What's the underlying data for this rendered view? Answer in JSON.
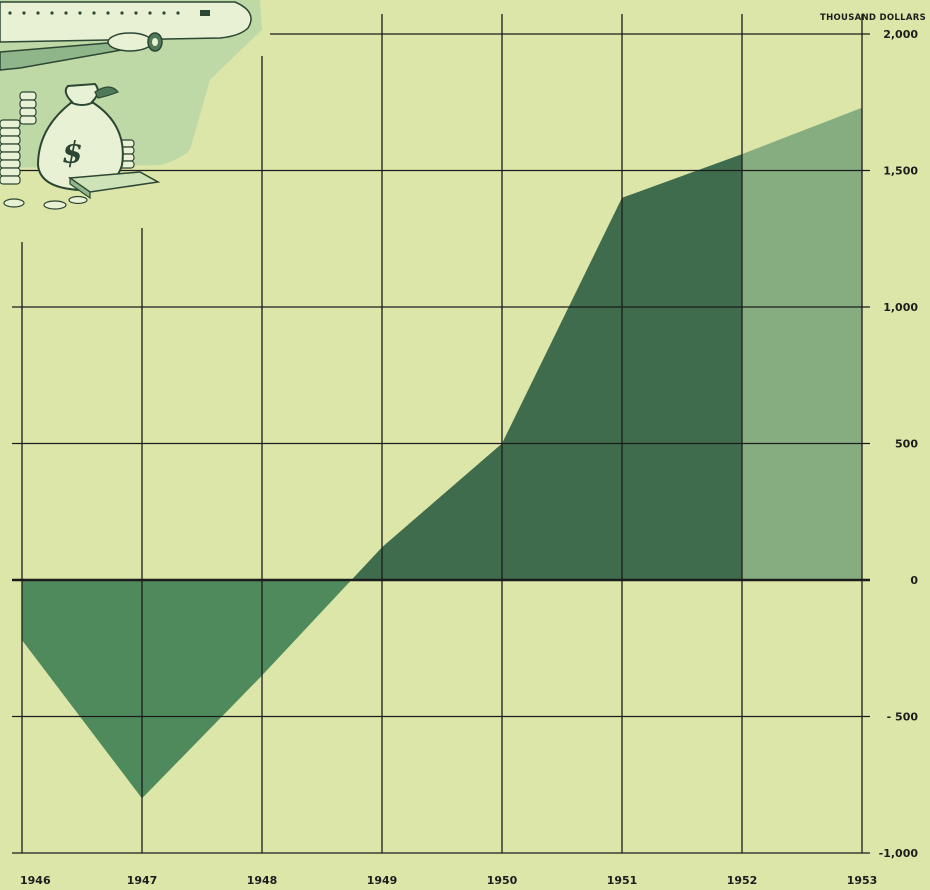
{
  "chart_data": {
    "type": "area",
    "ylabel": "THOUSAND DOLLARS",
    "x": [
      1946,
      1947,
      1948,
      1949,
      1950,
      1951,
      1952,
      1953
    ],
    "x_tick_labels": [
      "1946",
      "1947",
      "1948",
      "1949",
      "1950",
      "1951",
      "1952",
      "1953"
    ],
    "values": [
      -220,
      -800,
      -350,
      120,
      500,
      1400,
      1560,
      1730
    ],
    "projected_from": 1952,
    "xlim": [
      1946,
      1953
    ],
    "ylim": [
      -1000,
      2000
    ],
    "y_ticks": [
      2000,
      1500,
      1000,
      500,
      0,
      -500,
      -1000
    ],
    "y_tick_labels": [
      "2,000",
      "1,500",
      "1,000",
      "500",
      "0",
      "- 500",
      "-1,000"
    ],
    "grid": true,
    "colors": {
      "background": "#dde6a9",
      "negative_area": "#4e8a5c",
      "positive_area": "#3e6c4c",
      "projected_area": "#86ad80",
      "grid": "#1c1c1c"
    }
  },
  "illustration": {
    "name": "airplane-and-money-bag-illustration",
    "money_symbol": "$"
  }
}
